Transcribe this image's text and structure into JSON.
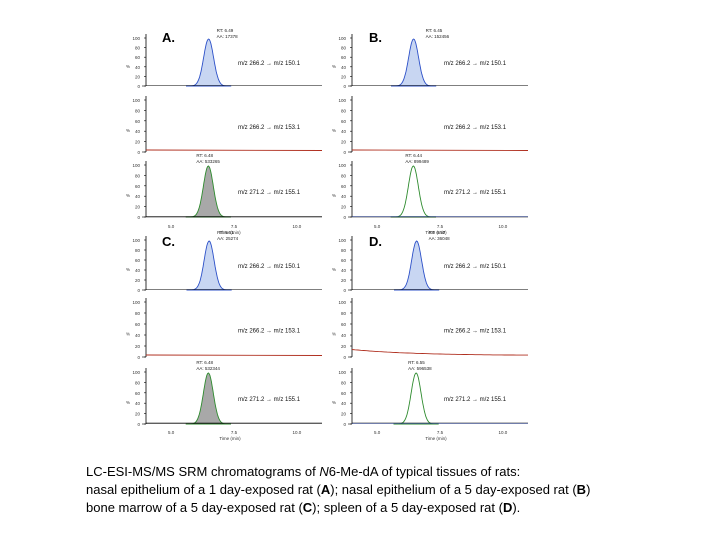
{
  "figure": {
    "colors": {
      "frame": "#000000",
      "baseline": "#b03020",
      "blue_fill": "#c8d6f2",
      "blue_line": "#2c50c8",
      "gray_fill": "#a8a8a8",
      "green_line": "#2e8b2e",
      "lowtrace": "#b03020"
    },
    "panels": [
      {
        "id": "A",
        "label": "A.",
        "x_axis": {
          "ticks": [
            "5.0",
            "7.5",
            "10.0"
          ],
          "label": "Time (min)"
        },
        "traces": [
          {
            "y_ticks": [
              "100",
              "80",
              "60",
              "40",
              "20",
              "0"
            ],
            "y_axis_label": "%",
            "transition": "m/z 266.2 → m/z 150.1",
            "peak_style": "blue",
            "peak_annotation": [
              "RT: 6.49",
              "AA: 17378"
            ],
            "peak_rt": 6.49
          },
          {
            "y_ticks": [
              "100",
              "80",
              "60",
              "40",
              "20",
              "0"
            ],
            "y_axis_label": "%",
            "transition": "m/z 266.2 → m/z 153.1",
            "peak_style": "flat"
          },
          {
            "y_ticks": [
              "100",
              "80",
              "60",
              "40",
              "20",
              "0"
            ],
            "y_axis_label": "%",
            "transition": "m/z 271.2 → m/z 155.1",
            "peak_style": "gray",
            "peak_annotation": [
              "RT: 6.48",
              "AA: 533265"
            ],
            "peak_rt": 6.48
          }
        ]
      },
      {
        "id": "B",
        "label": "B.",
        "x_axis": {
          "ticks": [
            "5.0",
            "7.5",
            "10.0"
          ],
          "label": "Time (min)"
        },
        "traces": [
          {
            "y_ticks": [
              "100",
              "80",
              "60",
              "40",
              "20",
              "0"
            ],
            "y_axis_label": "%",
            "transition": "m/z 266.2 → m/z 150.1",
            "peak_style": "blue",
            "peak_annotation": [
              "RT: 6.45",
              "AA: 152456"
            ],
            "peak_rt": 6.45
          },
          {
            "y_ticks": [
              "100",
              "80",
              "60",
              "40",
              "20",
              "0"
            ],
            "y_axis_label": "%",
            "transition": "m/z 266.2 → m/z 153.1",
            "peak_style": "flat"
          },
          {
            "y_ticks": [
              "100",
              "80",
              "60",
              "40",
              "20",
              "0"
            ],
            "y_axis_label": "%",
            "transition": "m/z 271.2 → m/z 155.1",
            "peak_style": "green",
            "peak_annotation": [
              "RT: 6.44",
              "AA: 899489"
            ],
            "peak_rt": 6.44
          }
        ]
      },
      {
        "id": "C",
        "label": "C.",
        "x_axis": {
          "ticks": [
            "5.0",
            "7.5",
            "10.0"
          ],
          "label": "Time (min)"
        },
        "traces": [
          {
            "y_ticks": [
              "100",
              "80",
              "60",
              "40",
              "20",
              "0"
            ],
            "y_axis_label": "%",
            "transition": "m/z 266.2 → m/z 150.1",
            "peak_style": "blue",
            "peak_annotation": [
              "RT: 6.51",
              "AA: 25274"
            ],
            "peak_rt": 6.51
          },
          {
            "y_ticks": [
              "100",
              "80",
              "60",
              "40",
              "20",
              "0"
            ],
            "y_axis_label": "%",
            "transition": "m/z 266.2 → m/z 153.1",
            "peak_style": "flat"
          },
          {
            "y_ticks": [
              "100",
              "80",
              "60",
              "40",
              "20",
              "0"
            ],
            "y_axis_label": "%",
            "transition": "m/z 271.2 → m/z 155.1",
            "peak_style": "gray",
            "peak_annotation": [
              "RT: 6.48",
              "AA: 532344"
            ],
            "peak_rt": 6.48
          }
        ]
      },
      {
        "id": "D",
        "label": "D.",
        "x_axis": {
          "ticks": [
            "5.0",
            "7.5",
            "10.0"
          ],
          "label": "Time (min)"
        },
        "traces": [
          {
            "y_ticks": [
              "100",
              "80",
              "60",
              "40",
              "20",
              "0"
            ],
            "y_axis_label": "%",
            "transition": "m/z 266.2 → m/z 150.1",
            "peak_style": "blue",
            "peak_annotation": [
              "RT: 6.57",
              "AA: 36048"
            ],
            "peak_rt": 6.57
          },
          {
            "y_ticks": [
              "100",
              "80",
              "60",
              "40",
              "20",
              "0"
            ],
            "y_axis_label": "%",
            "transition": "m/z 266.2 → m/z 153.1",
            "peak_style": "decay"
          },
          {
            "y_ticks": [
              "100",
              "80",
              "60",
              "40",
              "20",
              "0"
            ],
            "y_axis_label": "%",
            "transition": "m/z 271.2 → m/z 155.1",
            "peak_style": "green",
            "peak_annotation": [
              "RT: 6.55",
              "AA: 596538"
            ],
            "peak_rt": 6.55
          }
        ]
      }
    ]
  },
  "caption": {
    "line1_pre": "LC-ESI-MS/MS SRM chromatograms of ",
    "line1_italic": "N",
    "line1_post": "6-Me-dA of typical tissues of rats:",
    "line2_a": "nasal epithelium of a 1 day-exposed rat (",
    "line2_bold_a": "A",
    "line2_b": "); nasal epithelium of a 5 day-exposed rat (",
    "line2_bold_b": "B",
    "line2_c": ")",
    "line3_a": "bone marrow of a 5 day-exposed rat (",
    "line3_bold_c": "C",
    "line3_b": "); spleen of a 5 day-exposed rat (",
    "line3_bold_d": "D",
    "line3_c": ")."
  }
}
